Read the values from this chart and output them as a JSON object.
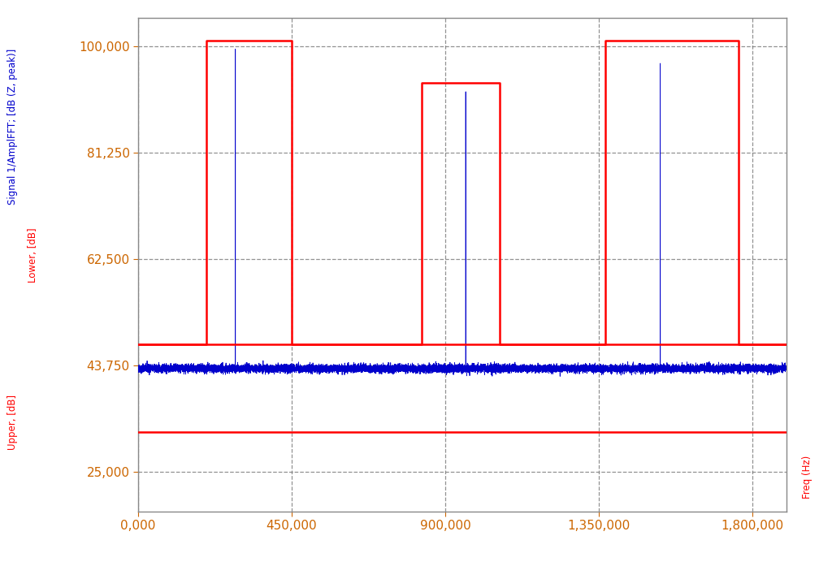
{
  "x_min": 0,
  "x_max": 1900000,
  "x_ticks": [
    0,
    450000,
    900000,
    1350000,
    1800000
  ],
  "x_tick_labels": [
    "0,000",
    "450,000",
    "900,000",
    "1,350,000",
    "1,800,000"
  ],
  "y_min": 18000,
  "y_max": 105000,
  "y_ticks": [
    25000,
    43750,
    62500,
    81250,
    100000
  ],
  "y_tick_labels": [
    "25,000",
    "43,750",
    "62,500",
    "81,250",
    "100,000"
  ],
  "noise_floor": 43200,
  "noise_amplitude": 350,
  "tonal_peaks": [
    {
      "freq": 285000,
      "amplitude": 99500
    },
    {
      "freq": 960000,
      "amplitude": 92000
    },
    {
      "freq": 1530000,
      "amplitude": 97000
    }
  ],
  "upper_step_curve": [
    [
      0,
      47500
    ],
    [
      200000,
      47500
    ],
    [
      200000,
      101000
    ],
    [
      450000,
      101000
    ],
    [
      450000,
      47500
    ],
    [
      830000,
      47500
    ],
    [
      830000,
      93500
    ],
    [
      1060000,
      93500
    ],
    [
      1060000,
      47500
    ],
    [
      1370000,
      47500
    ],
    [
      1370000,
      101000
    ],
    [
      1760000,
      101000
    ],
    [
      1760000,
      47500
    ],
    [
      1900000,
      47500
    ]
  ],
  "lower_line_y": 47500,
  "upper_line_y": 32000,
  "background_color": "#ffffff",
  "signal_color": "#0000cc",
  "tolerance_color": "#ff0000",
  "grid_color": "#777777",
  "ylabel_left_top": "Signal 1/AmplFFT; [dB (Z, peak)]",
  "ylabel_left_mid": "Lower, [dB]",
  "ylabel_left_bot": "Upper, [dB]",
  "ylabel_right": "Freq (Hz)",
  "figsize": [
    10.24,
    7.13
  ],
  "dpi": 100
}
